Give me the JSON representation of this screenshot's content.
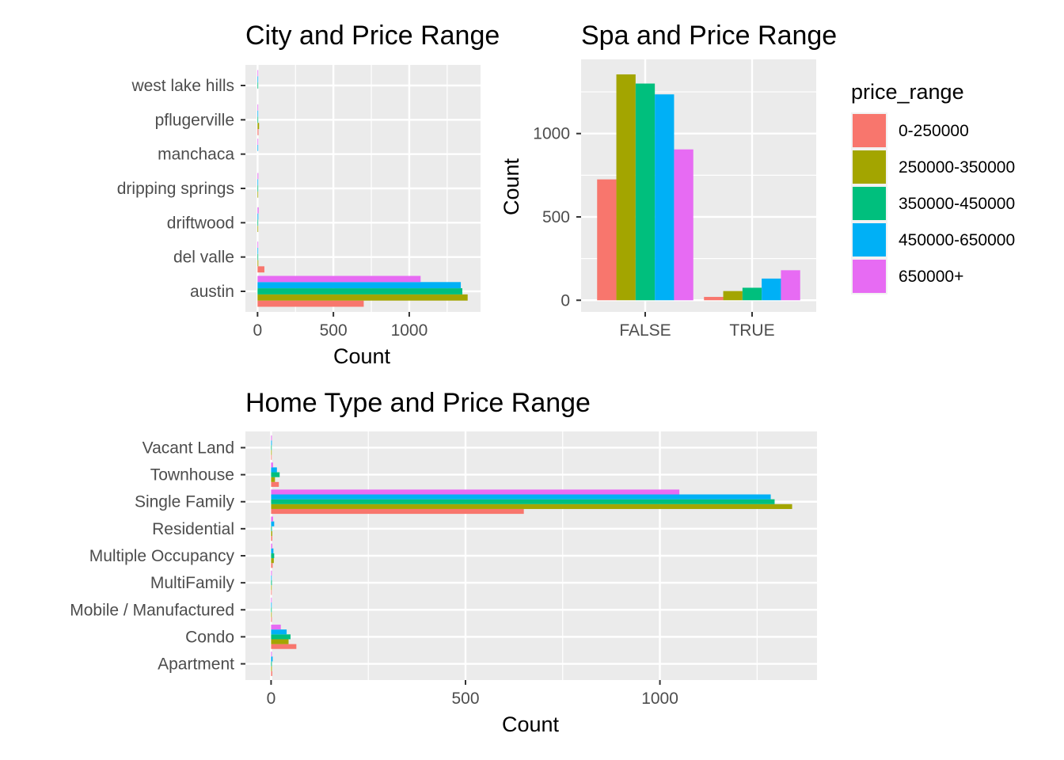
{
  "chart_data": [
    {
      "id": "city",
      "type": "bar",
      "orientation": "horizontal",
      "title": "City and Price Range",
      "xlabel": "Count",
      "ylabel": "",
      "xlim": [
        -80,
        1470
      ],
      "xticks": [
        0,
        500,
        1000
      ],
      "grid": true,
      "categories": [
        "austin",
        "del valle",
        "driftwood",
        "dripping springs",
        "manchaca",
        "pflugerville",
        "west lake hills"
      ],
      "series": [
        {
          "name": "0-250000",
          "values": [
            700,
            45,
            0,
            0,
            0,
            6,
            0
          ]
        },
        {
          "name": "250000-350000",
          "values": [
            1385,
            5,
            3,
            3,
            0,
            10,
            0
          ]
        },
        {
          "name": "350000-450000",
          "values": [
            1350,
            3,
            4,
            3,
            0,
            4,
            2
          ]
        },
        {
          "name": "450000-650000",
          "values": [
            1340,
            3,
            5,
            4,
            2,
            2,
            2
          ]
        },
        {
          "name": "650000+",
          "values": [
            1075,
            2,
            7,
            5,
            2,
            2,
            3
          ]
        }
      ]
    },
    {
      "id": "spa",
      "type": "bar",
      "orientation": "vertical",
      "title": "Spa and Price Range",
      "xlabel": "",
      "ylabel": "Count",
      "ylim": [
        -70,
        1445
      ],
      "yticks": [
        0,
        500,
        1000
      ],
      "grid": true,
      "categories": [
        "FALSE",
        "TRUE"
      ],
      "series": [
        {
          "name": "0-250000",
          "values": [
            725,
            20
          ]
        },
        {
          "name": "250000-350000",
          "values": [
            1355,
            55
          ]
        },
        {
          "name": "350000-450000",
          "values": [
            1300,
            75
          ]
        },
        {
          "name": "450000-650000",
          "values": [
            1235,
            130
          ]
        },
        {
          "name": "650000+",
          "values": [
            905,
            180
          ]
        }
      ]
    },
    {
      "id": "hometype",
      "type": "bar",
      "orientation": "horizontal",
      "title": "Home Type and Price Range",
      "xlabel": "Count",
      "ylabel": "",
      "xlim": [
        -66,
        1404
      ],
      "xticks": [
        0,
        500,
        1000
      ],
      "grid": true,
      "categories": [
        "Apartment",
        "Condo",
        "Mobile / Manufactured",
        "MultiFamily",
        "Multiple Occupancy",
        "Residential",
        "Single Family",
        "Townhouse",
        "Vacant Land"
      ],
      "series": [
        {
          "name": "0-250000",
          "values": [
            3,
            65,
            2,
            1,
            4,
            3,
            650,
            20,
            1
          ]
        },
        {
          "name": "250000-350000",
          "values": [
            2,
            45,
            1,
            1,
            7,
            3,
            1340,
            10,
            1
          ]
        },
        {
          "name": "350000-450000",
          "values": [
            2,
            50,
            1,
            2,
            8,
            2,
            1295,
            22,
            1
          ]
        },
        {
          "name": "450000-650000",
          "values": [
            4,
            40,
            1,
            1,
            6,
            8,
            1285,
            15,
            2
          ]
        },
        {
          "name": "650000+",
          "values": [
            2,
            25,
            1,
            2,
            3,
            5,
            1050,
            5,
            2
          ]
        }
      ]
    }
  ],
  "legend": {
    "title": "price_range",
    "placement": "right",
    "items": [
      {
        "label": "0-250000",
        "color": "#F8766D"
      },
      {
        "label": "250000-350000",
        "color": "#A3A500"
      },
      {
        "label": "350000-450000",
        "color": "#00BF7D"
      },
      {
        "label": "450000-650000",
        "color": "#00B0F6"
      },
      {
        "label": "650000+",
        "color": "#E76BF3"
      }
    ]
  },
  "colors": {
    "panel_background": "#EBEBEB",
    "grid_major": "#FFFFFF",
    "tick_text": "#4D4D4D",
    "series": [
      "#F8766D",
      "#A3A500",
      "#00BF7D",
      "#00B0F6",
      "#E76BF3"
    ]
  }
}
